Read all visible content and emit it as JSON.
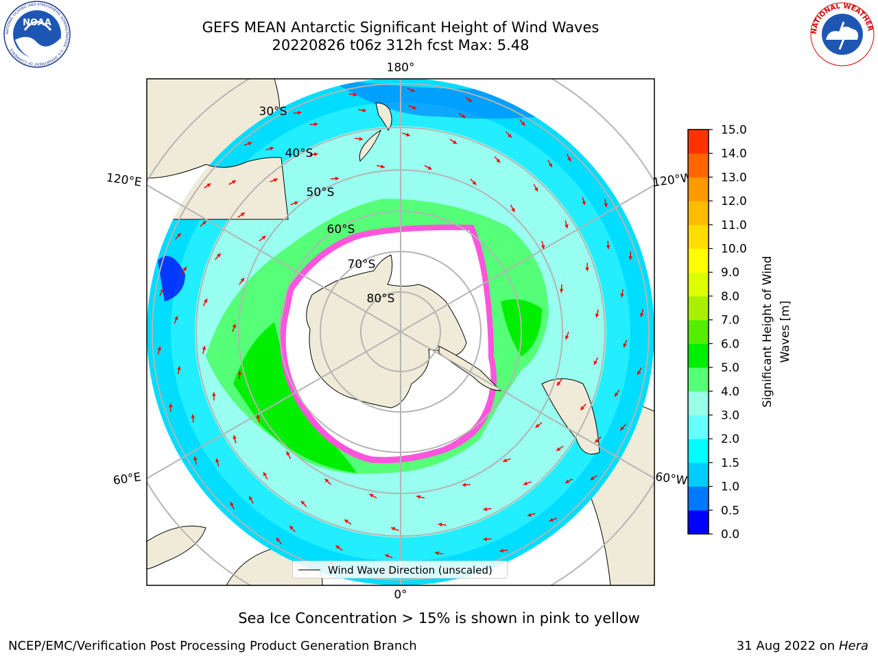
{
  "header": {
    "title_line1": "GEFS MEAN Antarctic Significant Height of Wind Waves",
    "title_line2": "20220826 t06z 312h fcst   Max: 5.48"
  },
  "logos": {
    "left": "NOAA",
    "left_ring": "NATIONAL OCEANIC AND ATMOSPHERIC ADMINISTRATION · U.S. DEPARTMENT OF COMMERCE",
    "right_ring": "NATIONAL WEATHER SERVICE"
  },
  "map": {
    "projection": "south-polar-stereographic",
    "meridian_labels": [
      "180°",
      "120°E",
      "120°W",
      "60°E",
      "60°W",
      "0°"
    ],
    "latitude_labels": [
      "30°S",
      "40°S",
      "50°S",
      "60°S",
      "70°S",
      "80°S"
    ],
    "legend_label": "Wind Wave Direction (unscaled)",
    "colors": {
      "land": "#efebd8",
      "ice": "#ffffff",
      "arrow": "#ff0000",
      "grid": "#b4b4b4"
    }
  },
  "colorbar": {
    "label": "Significant Height of Wind Waves [m]",
    "ticks": [
      "0.0",
      "0.5",
      "1.0",
      "1.5",
      "2.0",
      "3.0",
      "4.0",
      "5.0",
      "6.0",
      "7.0",
      "8.0",
      "9.0",
      "10.0",
      "11.0",
      "12.0",
      "13.0",
      "14.0",
      "15.0"
    ],
    "colors": [
      "#0000ff",
      "#0078ff",
      "#00ccff",
      "#00ffff",
      "#66ffff",
      "#99ffe6",
      "#55ff77",
      "#00ee00",
      "#55ee00",
      "#aaee00",
      "#ddff00",
      "#ffff00",
      "#ffdd00",
      "#ffbb00",
      "#ff9900",
      "#ff6600",
      "#ff3300"
    ]
  },
  "footer": {
    "note": "Sea Ice Concentration > 15% is shown in pink to yellow",
    "credit": "NCEP/EMC/Verification Post Processing Product Generation Branch",
    "date": "31 Aug 2022 on",
    "machine": "Hera"
  }
}
